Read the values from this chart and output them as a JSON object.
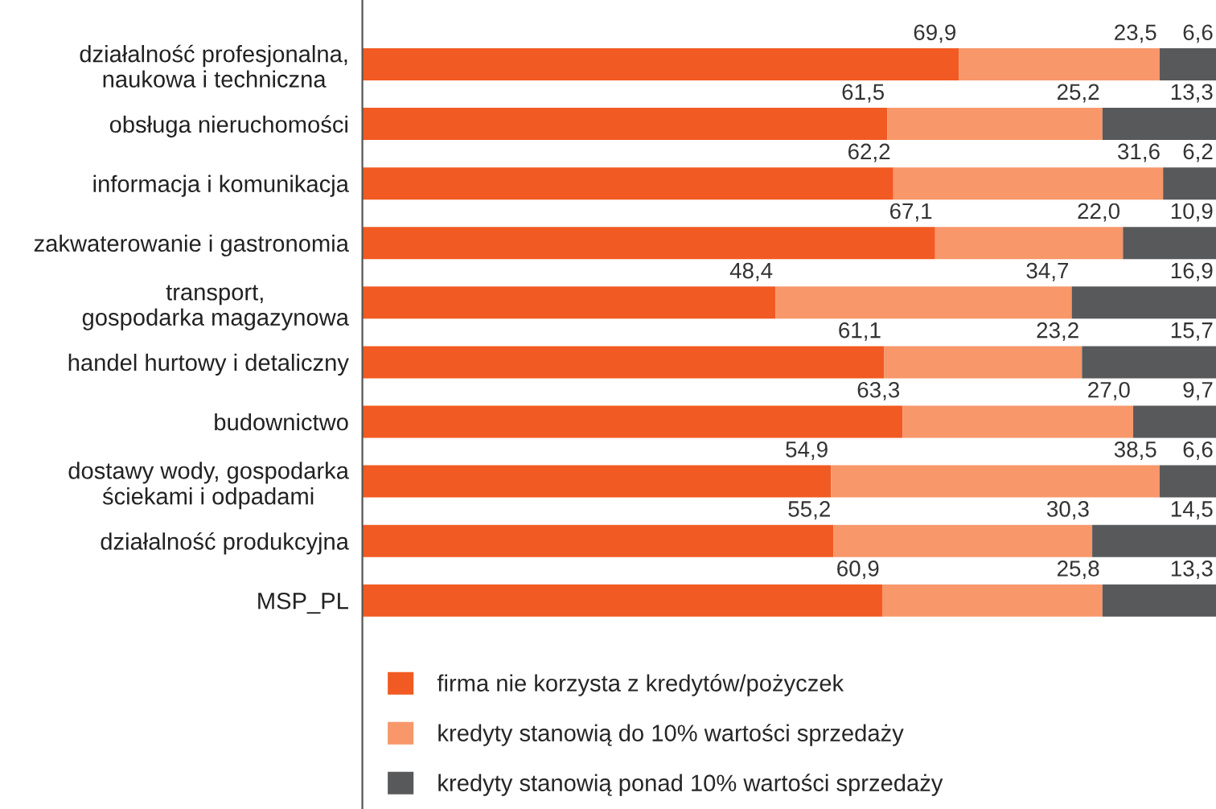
{
  "chart_data": {
    "type": "bar",
    "orientation": "horizontal",
    "stacked": true,
    "legend": "bottom",
    "categories": [
      "działalność profesjonalna,\nnaukowa i techniczna",
      "obsługa nieruchomości",
      "informacja i komunikacja",
      "zakwaterowanie i gastronomia",
      "transport,\ngospodarka magazynowa",
      "handel hurtowy i detaliczny",
      "budownictwo",
      "dostawy wody, gospodarka\nściekami i odpadami",
      "działalność produkcyjna",
      "MSP_PL"
    ],
    "series": [
      {
        "name": "firma nie korzysta z kredytów/pożyczek",
        "color": "#f15a22",
        "values": [
          69.9,
          61.5,
          62.2,
          67.1,
          48.4,
          61.1,
          63.3,
          54.9,
          55.2,
          60.9
        ],
        "value_labels": [
          "69,9",
          "61,5",
          "62,2",
          "67,1",
          "48,4",
          "61,1",
          "63,3",
          "54,9",
          "55,2",
          "60,9"
        ]
      },
      {
        "name": "kredyty stanowią do 10% wartości sprzedaży",
        "color": "#f7976a",
        "values": [
          23.5,
          25.2,
          31.6,
          22.0,
          34.7,
          23.2,
          27.0,
          38.5,
          30.3,
          25.8
        ],
        "value_labels": [
          "23,5",
          "25,2",
          "31,6",
          "22,0",
          "34,7",
          "23,2",
          "27,0",
          "38,5",
          "30,3",
          "25,8"
        ]
      },
      {
        "name": "kredyty stanowią ponad 10% wartości sprzedaży",
        "color": "#58595b",
        "values": [
          6.6,
          13.3,
          6.2,
          10.9,
          16.9,
          15.7,
          9.7,
          6.6,
          14.5,
          13.3
        ],
        "value_labels": [
          "6,6",
          "13,3",
          "6,2",
          "10,9",
          "16,9",
          "15,7",
          "9,7",
          "6,6",
          "14,5",
          "13,3"
        ]
      }
    ]
  }
}
